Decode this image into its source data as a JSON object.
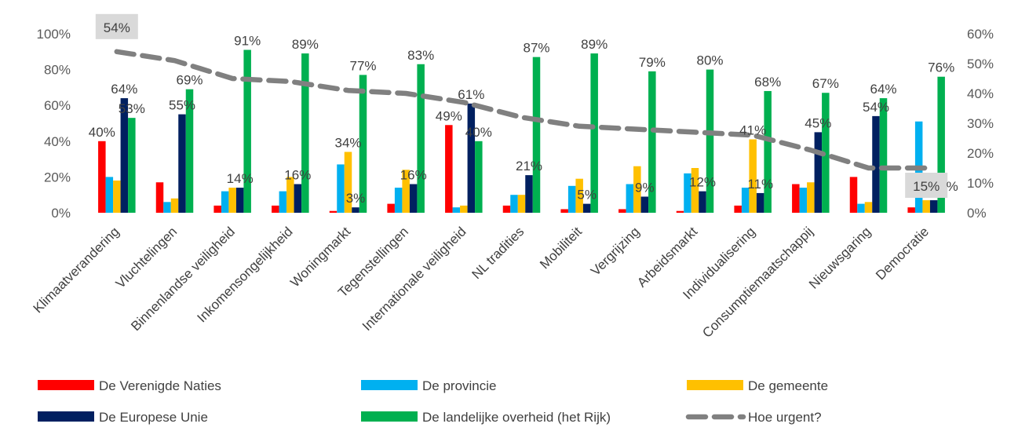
{
  "chart_data": {
    "type": "bar",
    "categories": [
      "Klimaatverandering",
      "Vluchtelingen",
      "Binnenlandse veiligheid",
      "Inkomensongelijkheid",
      "Woningmarkt",
      "Tegenstellingen",
      "Internationale veiligheid",
      "NL tradities",
      "Mobiliteit",
      "Vergrijzing",
      "Arbeidsmarkt",
      "Individualisering",
      "Consumptiemaatschappij",
      "Nieuwsgaring",
      "Democratie"
    ],
    "y_ticks": [
      "0%",
      "20%",
      "40%",
      "60%",
      "80%",
      "100%"
    ],
    "y2_ticks": [
      "0%",
      "10%",
      "20%",
      "30%",
      "40%",
      "50%",
      "60%"
    ],
    "ylim": [
      0,
      100
    ],
    "y2lim": [
      0,
      60
    ],
    "grid": false,
    "legend_position": "bottom",
    "series": [
      {
        "name": "De Verenigde Naties",
        "color": "#ff0000",
        "axis": "left",
        "values": [
          40,
          17,
          4,
          4,
          1,
          5,
          49,
          4,
          2,
          2,
          1,
          4,
          16,
          20,
          3
        ],
        "labels": [
          "40%",
          "",
          "",
          "",
          "",
          "",
          "49%",
          "",
          "",
          "",
          "",
          "",
          "",
          "",
          ""
        ]
      },
      {
        "name": "De provincie",
        "color": "#00b0f0",
        "axis": "left",
        "values": [
          20,
          6,
          12,
          12,
          27,
          14,
          3,
          10,
          15,
          16,
          22,
          14,
          14,
          5,
          51
        ],
        "labels": [
          "",
          "",
          "",
          "",
          "",
          "",
          "",
          "",
          "",
          "",
          "",
          "",
          "",
          "",
          ""
        ]
      },
      {
        "name": "De gemeente",
        "color": "#ffc000",
        "axis": "left",
        "values": [
          18,
          8,
          14,
          20,
          34,
          24,
          4,
          10,
          19,
          26,
          25,
          41,
          17,
          6,
          7
        ],
        "labels": [
          "",
          "",
          "",
          "",
          "34%",
          "",
          "",
          "",
          "",
          "",
          "",
          "41%",
          "",
          "",
          ""
        ]
      },
      {
        "name": "De Europese Unie",
        "color": "#002060",
        "axis": "left",
        "values": [
          64,
          55,
          14,
          16,
          3,
          16,
          61,
          21,
          5,
          9,
          12,
          11,
          45,
          54,
          7
        ],
        "labels": [
          "64%",
          "55%",
          "14%",
          "16%",
          "3%",
          "16%",
          "61%",
          "21%",
          "5%",
          "9%",
          "12%",
          "11%",
          "45%",
          "54%",
          ""
        ]
      },
      {
        "name": "De landelijke overheid (het Rijk)",
        "color": "#00b050",
        "axis": "left",
        "values": [
          53,
          69,
          91,
          89,
          77,
          83,
          40,
          87,
          89,
          79,
          80,
          68,
          67,
          64,
          76
        ],
        "labels": [
          "53%",
          "69%",
          "91%",
          "89%",
          "77%",
          "83%",
          "40%",
          "87%",
          "89%",
          "79%",
          "80%",
          "68%",
          "67%",
          "64%",
          "76%"
        ]
      },
      {
        "name": "Hoe urgent?",
        "color": "#808080",
        "axis": "right",
        "style": "dashed-line",
        "values": [
          54,
          51,
          45,
          44,
          41,
          40,
          37,
          32,
          29,
          28,
          27,
          26,
          21,
          15,
          15
        ],
        "labels": [
          "54%",
          "",
          "",
          "",
          "",
          "",
          "",
          "",
          "",
          "",
          "",
          "",
          "",
          "",
          "15%"
        ]
      }
    ],
    "label_boxes": [
      "54%",
      "15%"
    ],
    "clipped_label_fragment": "%"
  }
}
